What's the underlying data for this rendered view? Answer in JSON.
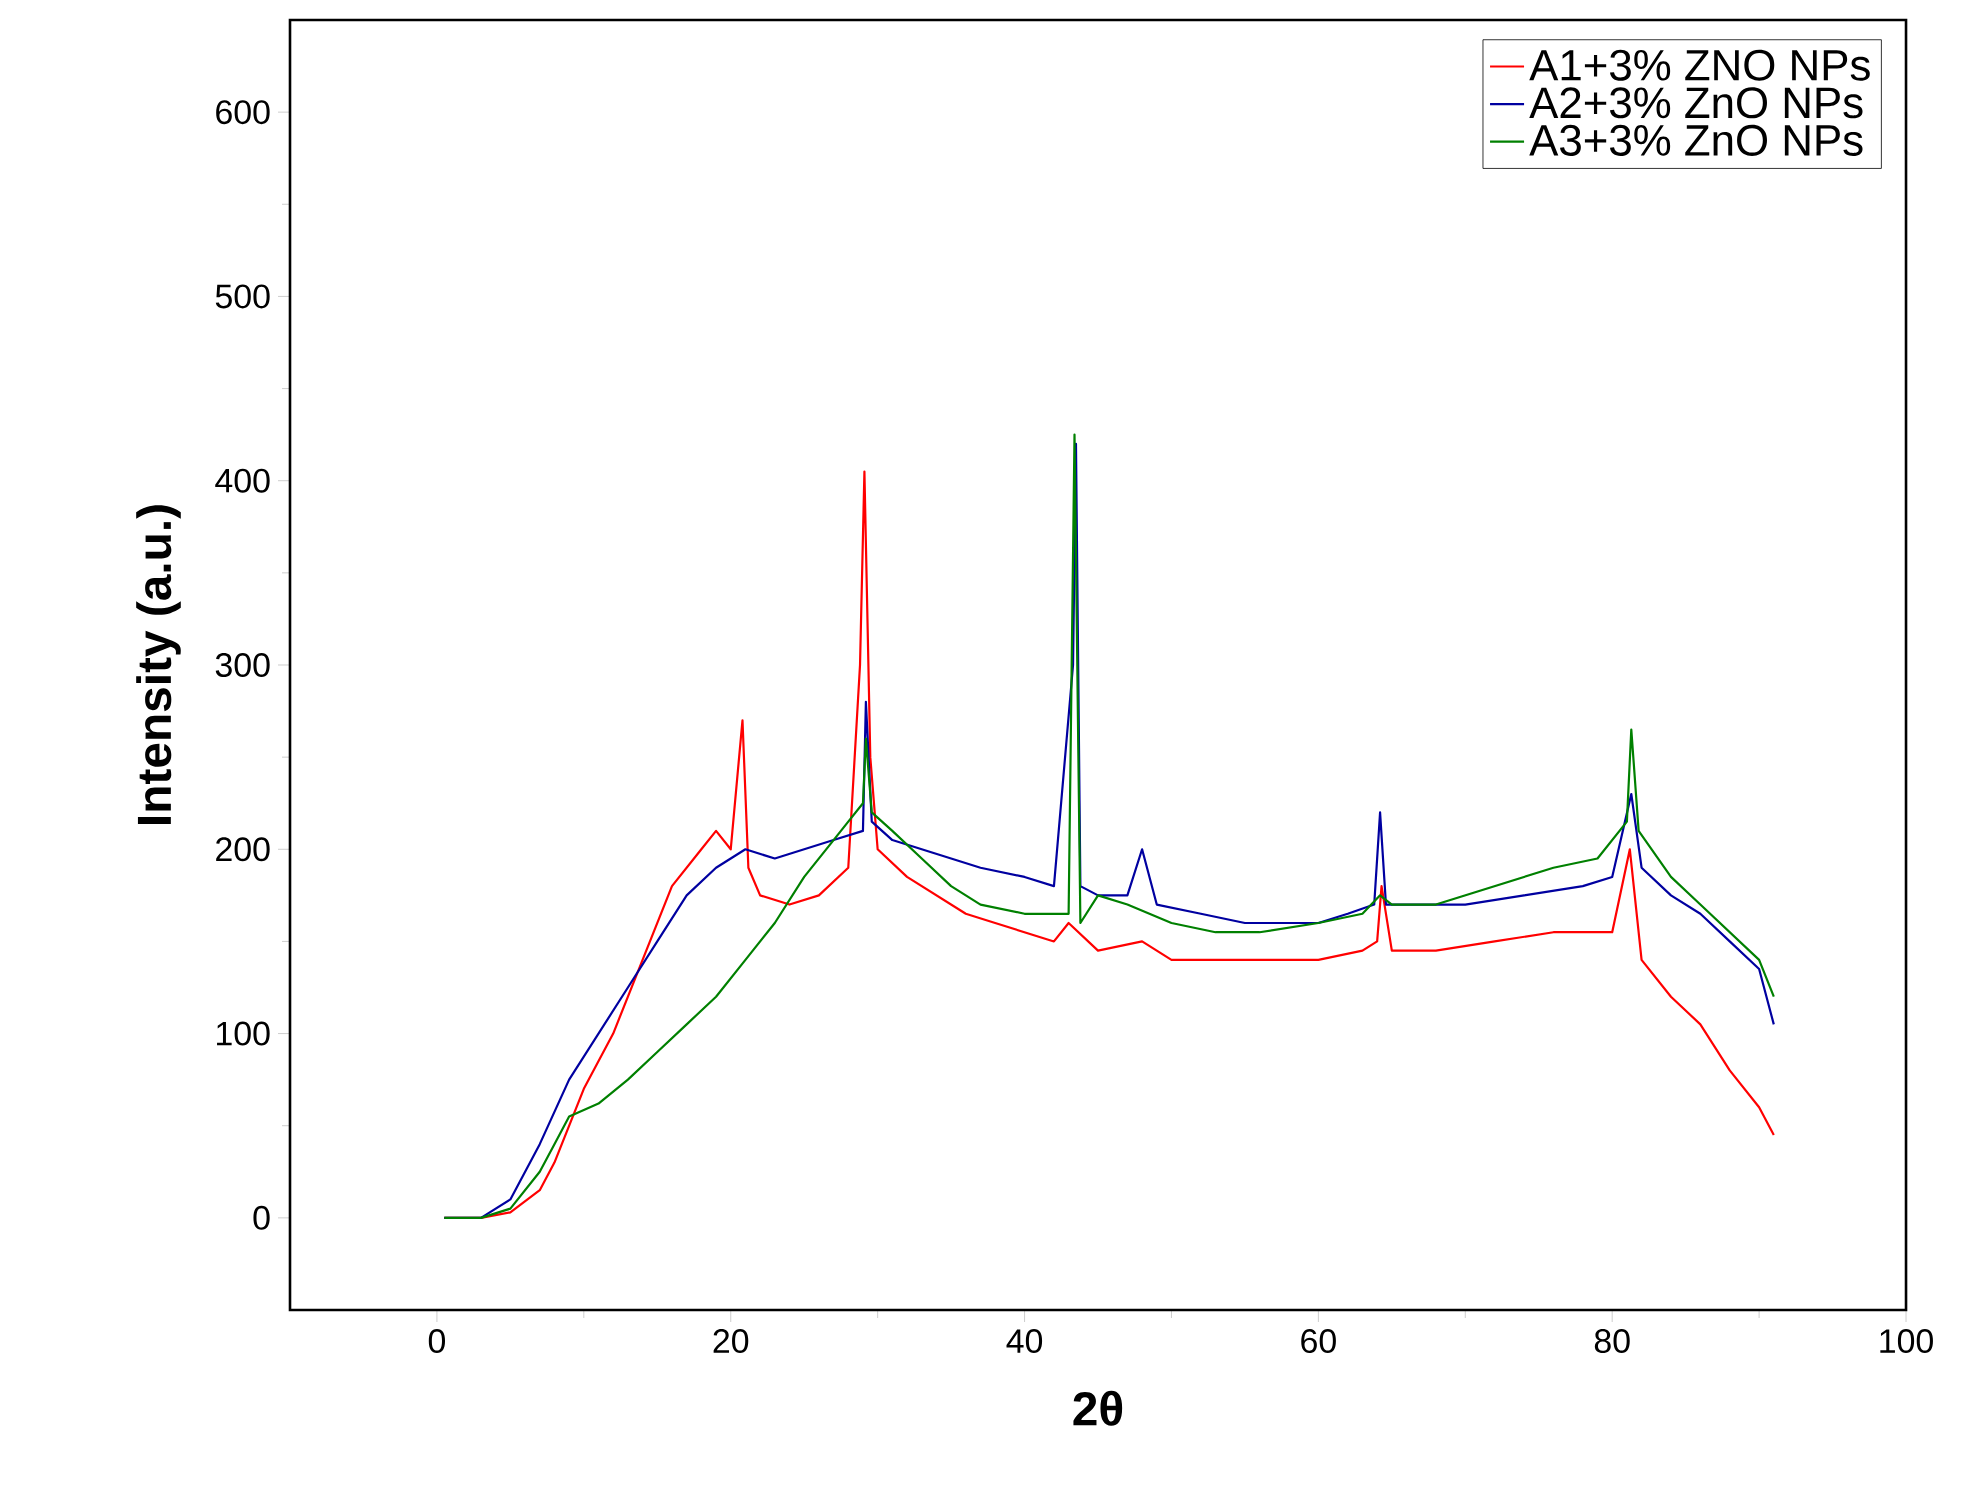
{
  "chart_data": {
    "type": "line",
    "xlabel": "2θ",
    "ylabel": "Intensity (a.u.)",
    "xlim": [
      -10,
      100
    ],
    "ylim": [
      -50,
      650
    ],
    "xticks": [
      0,
      20,
      40,
      60,
      80,
      100
    ],
    "yticks": [
      0,
      100,
      200,
      300,
      400,
      500,
      600
    ],
    "legend": "top right",
    "grid": false,
    "marker": "none",
    "line_style": "solid",
    "series": [
      {
        "name": "A1+3% ZNO NPs",
        "color": "#ff0000",
        "x": [
          0.5,
          3,
          5,
          7,
          8,
          10,
          12,
          14,
          16,
          18,
          19,
          20,
          20.8,
          21.2,
          22,
          24,
          26,
          28,
          28.8,
          29.1,
          29.5,
          30,
          32,
          34,
          36,
          38,
          40,
          42,
          43,
          45,
          48,
          50,
          55,
          60,
          63,
          64,
          64.3,
          65,
          68,
          72,
          76,
          80,
          81.2,
          82,
          84,
          86,
          88,
          90,
          91
        ],
        "values": [
          0,
          0,
          3,
          15,
          30,
          70,
          100,
          140,
          180,
          200,
          210,
          200,
          270,
          190,
          175,
          170,
          175,
          190,
          300,
          405,
          250,
          200,
          185,
          175,
          165,
          160,
          155,
          150,
          160,
          145,
          150,
          140,
          140,
          140,
          145,
          150,
          180,
          145,
          145,
          150,
          155,
          155,
          200,
          140,
          120,
          105,
          80,
          60,
          45
        ]
      },
      {
        "name": "A2+3% ZnO NPs",
        "color": "#0000a0",
        "x": [
          0.5,
          3,
          5,
          7,
          9,
          11,
          13,
          15,
          17,
          19,
          21,
          23,
          25,
          27,
          29,
          29.2,
          29.6,
          31,
          33,
          35,
          37,
          40,
          42,
          43.3,
          43.5,
          43.8,
          45,
          47,
          48,
          49,
          52,
          55,
          58,
          60,
          62,
          63.8,
          64.2,
          64.6,
          67,
          70,
          74,
          78,
          80,
          81.3,
          82,
          84,
          86,
          88,
          90,
          91
        ],
        "values": [
          0,
          0,
          10,
          40,
          75,
          100,
          125,
          150,
          175,
          190,
          200,
          195,
          200,
          205,
          210,
          280,
          215,
          205,
          200,
          195,
          190,
          185,
          180,
          300,
          420,
          180,
          175,
          175,
          200,
          170,
          165,
          160,
          160,
          160,
          165,
          170,
          220,
          170,
          170,
          170,
          175,
          180,
          185,
          230,
          190,
          175,
          165,
          150,
          135,
          105
        ]
      },
      {
        "name": "A3+3% ZnO NPs",
        "color": "#008000",
        "x": [
          0.5,
          3,
          5,
          7,
          8,
          9,
          11,
          13,
          15,
          17,
          19,
          21,
          23,
          25,
          27,
          28,
          29,
          29.2,
          29.6,
          31,
          33,
          35,
          37,
          40,
          43,
          43.4,
          43.8,
          45,
          47,
          50,
          53,
          56,
          60,
          63,
          64.2,
          65,
          68,
          72,
          76,
          79,
          81,
          81.3,
          81.8,
          84,
          86,
          88,
          90,
          91
        ],
        "values": [
          0,
          0,
          5,
          25,
          40,
          55,
          62,
          75,
          90,
          105,
          120,
          140,
          160,
          185,
          205,
          215,
          225,
          260,
          220,
          210,
          195,
          180,
          170,
          165,
          165,
          425,
          160,
          175,
          170,
          160,
          155,
          155,
          160,
          165,
          175,
          170,
          170,
          180,
          190,
          195,
          215,
          265,
          210,
          185,
          170,
          155,
          140,
          120
        ]
      }
    ]
  }
}
